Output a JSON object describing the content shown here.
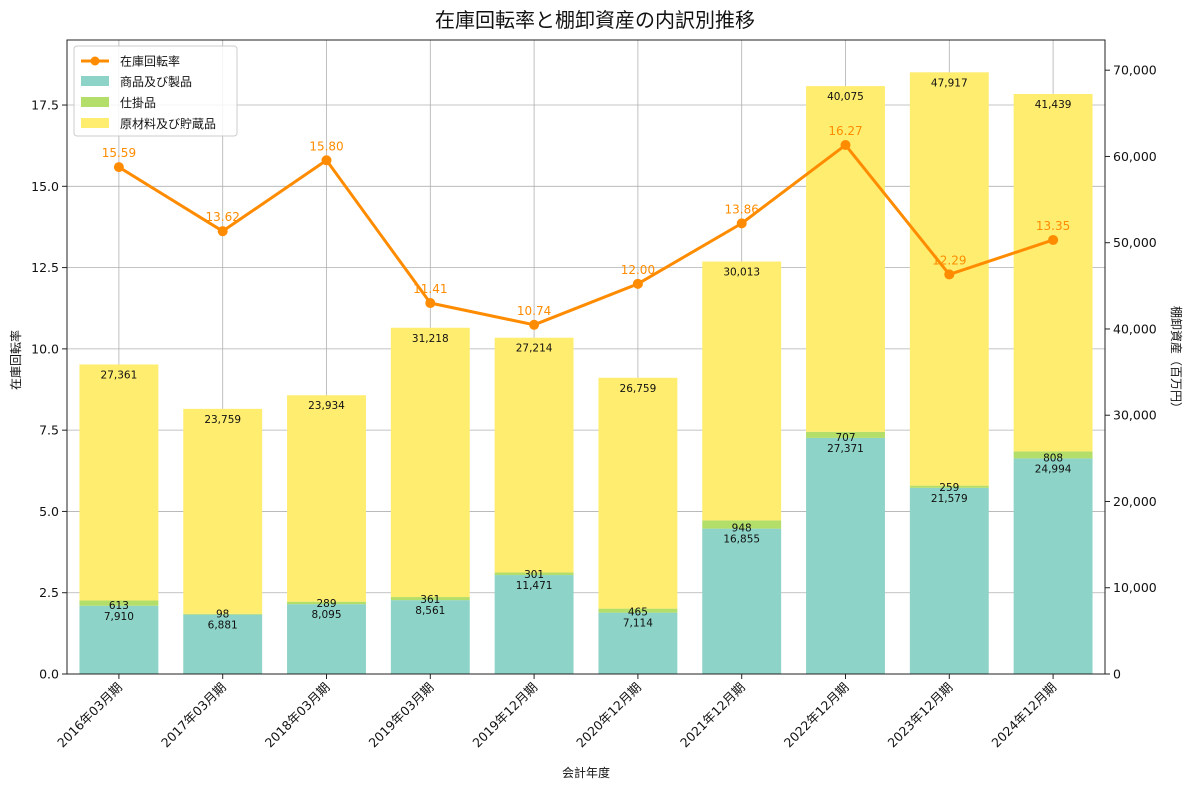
{
  "chart_data": {
    "type": "bar",
    "title": "在庫回転率と棚卸資産の内訳別推移",
    "xlabel": "会計年度",
    "ylabel_left": "在庫回転率",
    "ylabel_right": "棚卸資産（百万円）",
    "categories": [
      "2016年03月期",
      "2017年03月期",
      "2018年03月期",
      "2019年03月期",
      "2019年12月期",
      "2020年12月期",
      "2021年12月期",
      "2022年12月期",
      "2023年12月期",
      "2024年12月期"
    ],
    "bar_series": [
      {
        "name": "商品及び製品",
        "color": "#8dd3c7",
        "values": [
          7910,
          6881,
          8095,
          8561,
          11471,
          7114,
          16855,
          27371,
          21579,
          24994
        ],
        "labels": [
          "7,910",
          "6,881",
          "8,095",
          "8,561",
          "11,471",
          "7,114",
          "16,855",
          "27,371",
          "21,579",
          "24,994"
        ]
      },
      {
        "name": "仕掛品",
        "color": "#b3de69",
        "values": [
          613,
          98,
          289,
          361,
          301,
          465,
          948,
          707,
          259,
          808
        ],
        "labels": [
          "613",
          "98",
          "289",
          "361",
          "301",
          "465",
          "948",
          "707",
          "259",
          "808"
        ]
      },
      {
        "name": "原材料及び貯蔵品",
        "color": "#ffed6f",
        "values": [
          27361,
          23759,
          23934,
          31218,
          27214,
          26759,
          30013,
          40075,
          47917,
          41439
        ],
        "labels": [
          "27,361",
          "23,759",
          "23,934",
          "31,218",
          "27,214",
          "26,759",
          "30,013",
          "40,075",
          "47,917",
          "41,439"
        ]
      }
    ],
    "line_series": {
      "name": "在庫回転率",
      "color": "#ff8c00",
      "values": [
        15.59,
        13.62,
        15.8,
        11.41,
        10.74,
        12.0,
        13.86,
        16.27,
        12.29,
        13.35
      ],
      "labels": [
        "15.59",
        "13.62",
        "15.80",
        "11.41",
        "10.74",
        "12.00",
        "13.86",
        "16.27",
        "12.29",
        "13.35"
      ]
    },
    "y_left": {
      "min": 0,
      "max": 19.5,
      "ticks": [
        0,
        2.5,
        5,
        7.5,
        10,
        12.5,
        15,
        17.5
      ],
      "tick_labels": [
        "0.0",
        "2.5",
        "5.0",
        "7.5",
        "10.0",
        "12.5",
        "15.0",
        "17.5"
      ]
    },
    "y_right": {
      "min": 0,
      "max": 73500,
      "ticks": [
        0,
        10000,
        20000,
        30000,
        40000,
        50000,
        60000,
        70000
      ],
      "tick_labels": [
        "0",
        "10,000",
        "20,000",
        "30,000",
        "40,000",
        "50,000",
        "60,000",
        "70,000"
      ]
    },
    "grid": true,
    "legend_position": "top-left"
  }
}
